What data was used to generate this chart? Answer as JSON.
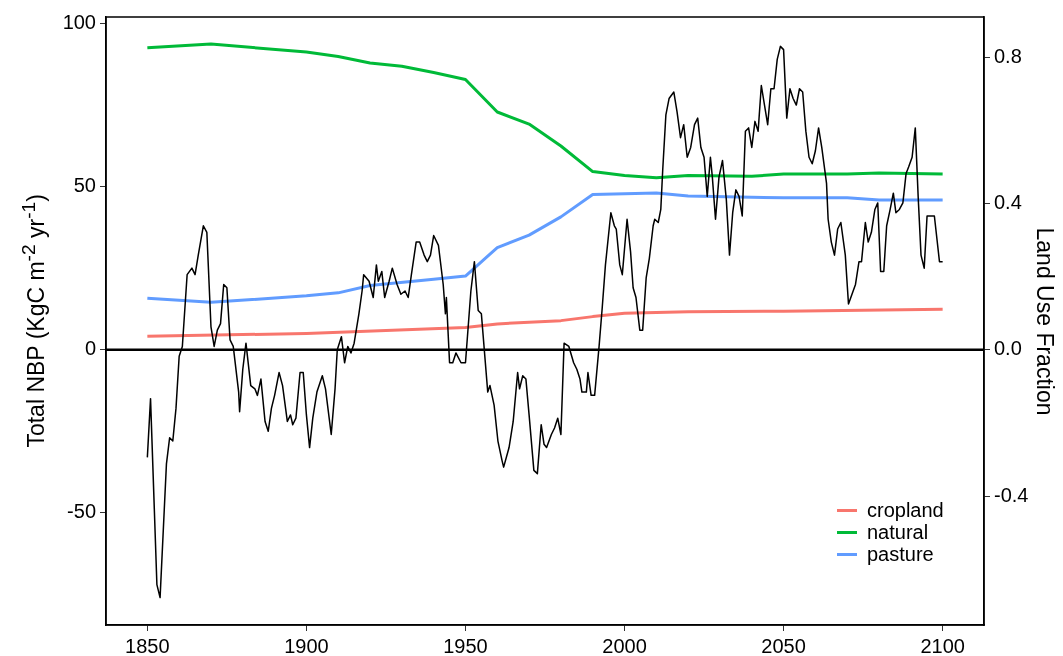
{
  "chart_data": {
    "type": "line",
    "ylabel": "Total NBP (KgC m$^{-2}$ yr$^{-1}$)",
    "y2label": "Land Use Fraction",
    "xlim": [
      1837,
      2113
    ],
    "xticks": [
      1850,
      1900,
      1950,
      2000,
      2050,
      2100
    ],
    "ylim": [
      -84.4,
      102
    ],
    "yticks": [
      -50,
      0,
      50,
      100
    ],
    "y2lim": [
      -0.753,
      0.911
    ],
    "y2ticks": [
      {
        "value": -0.4,
        "label": "-0.4"
      },
      {
        "value": 0,
        "label": "0.0"
      },
      {
        "value": 0.4,
        "label": "0.4"
      },
      {
        "value": 0.8,
        "label": "0.8"
      }
    ],
    "grid": false,
    "legend": "bottom right",
    "marker": "none",
    "line_style": "solid",
    "ref_lines": [
      {
        "axis": "y",
        "value": 0,
        "color": "#000000"
      }
    ],
    "series": [
      {
        "color": "#000000",
        "axis": "y",
        "x": [
          1850,
          1851,
          1853,
          1854,
          1856,
          1857,
          1858,
          1859,
          1860,
          1861,
          1862.5,
          1864,
          1865,
          1866,
          1867.6,
          1868.7,
          1870,
          1871,
          1872,
          1873,
          1874,
          1875,
          1876,
          1877,
          1878.7,
          1879,
          1880,
          1881,
          1882.5,
          1883.8,
          1884.6,
          1885.7,
          1887,
          1888,
          1889,
          1890,
          1891.4,
          1892.5,
          1894,
          1895,
          1895.7,
          1896.7,
          1898,
          1899,
          1900,
          1901,
          1902,
          1903.3,
          1905,
          1906,
          1907.8,
          1909,
          1909.7,
          1911,
          1912,
          1913,
          1914,
          1915,
          1916.5,
          1917.5,
          1918,
          1919.7,
          1921,
          1922,
          1922.6,
          1923.7,
          1924.6,
          1926,
          1927,
          1928.5,
          1929.7,
          1931,
          1932,
          1933,
          1934.5,
          1935.6,
          1937,
          1938,
          1939,
          1940,
          1941.5,
          1943,
          1943.7,
          1944,
          1945,
          1946,
          1947,
          1948.6,
          1950,
          1951.7,
          1952.8,
          1954,
          1955,
          1957,
          1957.7,
          1959,
          1960.2,
          1961.5,
          1962,
          1963.7,
          1965,
          1966.4,
          1967,
          1968,
          1969,
          1970,
          1971.5,
          1972.6,
          1973.8,
          1974.7,
          1975.5,
          1977,
          1978,
          1979,
          1980,
          1981,
          1982.5,
          1984,
          1985,
          1986,
          1986.6,
          1988,
          1988.5,
          1989.5,
          1990.6,
          1992,
          1993,
          1994,
          1995.7,
          1996.8,
          1997.4,
          1998.5,
          1999.3,
          2000.8,
          2001.9,
          2002.7,
          2003.6,
          2004.8,
          2005.7,
          2006.8,
          2007.8,
          2009,
          2009.5,
          2010.6,
          2011.4,
          2012,
          2013,
          2014,
          2015.5,
          2016.5,
          2017.6,
          2018.6,
          2019.7,
          2020.8,
          2022,
          2023,
          2024,
          2025,
          2026,
          2027,
          2027.6,
          2028.6,
          2029.7,
          2030.8,
          2032,
          2033,
          2034,
          2035,
          2036,
          2037,
          2038,
          2039,
          2040,
          2041,
          2042,
          2043,
          2044,
          2045,
          2046,
          2047,
          2048,
          2049,
          2050,
          2051,
          2052,
          2053,
          2054,
          2055,
          2056,
          2057,
          2058,
          2059,
          2060,
          2061,
          2062,
          2063.5,
          2064,
          2065,
          2066,
          2067,
          2068,
          2069.4,
          2070.4,
          2071.5,
          2072.6,
          2073.7,
          2074.5,
          2075.7,
          2076.6,
          2077.6,
          2078.7,
          2079.6,
          2080.5,
          2081.5,
          2082.4,
          2083.5,
          2084.5,
          2085.3,
          2086.4,
          2087.5,
          2088.5,
          2089.3,
          2090.4,
          2091.4,
          2092.3,
          2093.2,
          2094.2,
          2095.1,
          2096.2,
          2097.4,
          2099,
          2100
        ],
        "values": [
          -33,
          -15,
          -72,
          -76,
          -35,
          -27,
          -28,
          -18,
          -2,
          1,
          23,
          25,
          23,
          29,
          38,
          36,
          7,
          1,
          6,
          8,
          20,
          19,
          3,
          1,
          -13,
          -19,
          -6,
          2,
          -11,
          -12,
          -14,
          -9,
          -22,
          -25,
          -18,
          -14,
          -7,
          -11,
          -22,
          -20,
          -23,
          -21,
          -7,
          -7,
          -20,
          -30,
          -21,
          -13,
          -8,
          -12,
          -26,
          -12,
          0,
          4,
          -4,
          1,
          -1,
          2,
          11,
          18,
          23,
          21,
          16,
          26,
          21,
          24,
          16,
          21,
          25,
          20,
          17,
          18,
          16,
          23,
          33,
          33,
          29,
          27,
          29,
          35,
          32,
          20,
          11,
          16,
          -4,
          -4,
          -1,
          -4,
          -4,
          18,
          27,
          12,
          11,
          -13,
          -11,
          -17,
          -28,
          -34,
          -36,
          -30,
          -22,
          -7,
          -12,
          -8,
          -9,
          -20,
          -37,
          -38,
          -23,
          -29,
          -30,
          -26,
          -24,
          -21,
          -26,
          2,
          1,
          -4,
          -6,
          -9,
          -13,
          -13,
          -7,
          -14,
          -14,
          1,
          13,
          26,
          42,
          38,
          37,
          26,
          23,
          40,
          30,
          19,
          16,
          6,
          6,
          22,
          28,
          38,
          40,
          39,
          43,
          55,
          72,
          77,
          79,
          73,
          65,
          69,
          59,
          62,
          69,
          71,
          62,
          59,
          47,
          59,
          53,
          40,
          53,
          58,
          46,
          29,
          42,
          49,
          47,
          41,
          67,
          68,
          62,
          70,
          67,
          81,
          75,
          69,
          80,
          80,
          89,
          93,
          92,
          71,
          80,
          77,
          75,
          80,
          79,
          67,
          59,
          57,
          61,
          68,
          62,
          51,
          40,
          33,
          29,
          37,
          39,
          29,
          14,
          17,
          20,
          27,
          27,
          39,
          33,
          36,
          43,
          45,
          24,
          24,
          38,
          43,
          48,
          42,
          43,
          45,
          54,
          56,
          59,
          68,
          47,
          29,
          25,
          41,
          41,
          41,
          27,
          27
        ]
      },
      {
        "name": "cropland",
        "color": "#f8766d",
        "axis": "y2",
        "x": [
          1850,
          1900,
          1950,
          1960,
          1980,
          1990,
          2000,
          2020,
          2050,
          2100
        ],
        "values": [
          0.037,
          0.045,
          0.061,
          0.071,
          0.08,
          0.091,
          0.1,
          0.104,
          0.106,
          0.111
        ]
      },
      {
        "name": "natural",
        "color": "#00ba38",
        "axis": "y2",
        "x": [
          1850,
          1870,
          1900,
          1910,
          1920,
          1930,
          1940,
          1950,
          1960,
          1970,
          1980,
          1990,
          2000,
          2010,
          2020,
          2040,
          2050,
          2070,
          2080,
          2100
        ],
        "values": [
          0.827,
          0.837,
          0.815,
          0.803,
          0.785,
          0.776,
          0.759,
          0.74,
          0.651,
          0.618,
          0.558,
          0.488,
          0.477,
          0.471,
          0.477,
          0.475,
          0.481,
          0.481,
          0.484,
          0.481
        ]
      },
      {
        "name": "pasture",
        "color": "#619cff",
        "axis": "y2",
        "x": [
          1850,
          1870,
          1900,
          1910,
          1920,
          1940,
          1950,
          1960,
          1970,
          1980,
          1990,
          2010,
          2020,
          2050,
          2070,
          2080,
          2100
        ],
        "values": [
          0.141,
          0.13,
          0.148,
          0.156,
          0.176,
          0.193,
          0.202,
          0.28,
          0.314,
          0.364,
          0.425,
          0.429,
          0.421,
          0.416,
          0.416,
          0.41,
          0.41
        ]
      }
    ]
  }
}
